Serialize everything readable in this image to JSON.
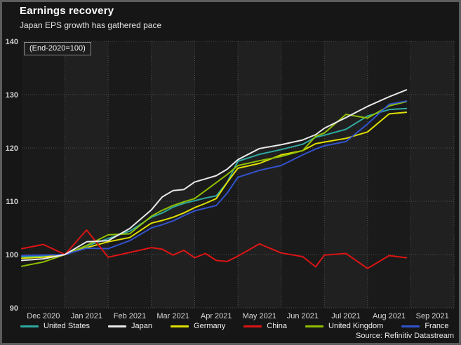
{
  "header": {
    "title": "Earnings recovery",
    "subtitle": "Japan EPS growth has gathered pace"
  },
  "footer": {
    "source": "Source: Refinitiv Datastream"
  },
  "chart_data": {
    "type": "line",
    "title": "Earnings recovery",
    "subtitle": "Japan EPS growth has gathered pace",
    "annotation": "(End-2020=100)",
    "xlabel": "",
    "ylabel": "",
    "ylim": [
      90,
      140
    ],
    "yticks": [
      90,
      100,
      110,
      120,
      130,
      140
    ],
    "x_range_months": [
      0,
      10
    ],
    "x_tick_labels": [
      "Dec 2020",
      "Jan 2021",
      "Feb 2021",
      "Mar 2021",
      "Apr 2021",
      "May 2021",
      "Jun 2021",
      "Jul 2021",
      "Aug 2021",
      "Sep 2021"
    ],
    "grid": "dotted",
    "legend_position": "bottom",
    "plot_band_alt_colors": [
      "#1a1a1a",
      "#202020"
    ],
    "gridline_color": "#4f4f4f",
    "x_months_from_dec1_2020": [
      0,
      0.5,
      1,
      1.5,
      2,
      2.5,
      3,
      3.25,
      3.5,
      3.75,
      4,
      4.25,
      4.5,
      4.75,
      5,
      5.5,
      6,
      6.5,
      6.8,
      7,
      7.5,
      8,
      8.5,
      8.9
    ],
    "x_point_dates": [
      "Dec 1",
      "Dec 15",
      "Jan 1",
      "Jan 15",
      "Feb 1",
      "Feb 15",
      "Mar 1",
      "Mar 8",
      "Mar 15",
      "Mar 23",
      "Apr 1",
      "Apr 8",
      "Apr 15",
      "Apr 23",
      "May 1",
      "May 15",
      "Jun 1",
      "Jun 15",
      "Jun 24",
      "Jul 1",
      "Jul 15",
      "Aug 1",
      "Aug 15",
      "Aug 28"
    ],
    "series": [
      {
        "name": "United States",
        "color": "#2fa8a0",
        "values": [
          99.6,
          99.7,
          100,
          101.6,
          103.0,
          104.4,
          107.0,
          107.8,
          108.9,
          109.6,
          110.1,
          110.6,
          111.0,
          113.5,
          117.5,
          118.8,
          119.7,
          120.7,
          122.0,
          122.4,
          123.5,
          126.0,
          127.2,
          127.4
        ]
      },
      {
        "name": "Japan",
        "color": "#e9e9e9",
        "values": [
          98.9,
          99.2,
          100,
          102.4,
          102.6,
          104.9,
          108.4,
          110.8,
          112.0,
          112.2,
          113.6,
          114.2,
          114.8,
          116.0,
          117.8,
          119.9,
          120.6,
          121.5,
          122.5,
          123.7,
          125.7,
          127.8,
          129.6,
          130.9
        ]
      },
      {
        "name": "Germany",
        "color": "#dfdf00",
        "values": [
          99.3,
          99.5,
          100,
          101.3,
          102.4,
          103.2,
          105.9,
          106.4,
          107.0,
          107.8,
          108.8,
          109.6,
          110.5,
          113.5,
          116.2,
          117.1,
          118.7,
          119.5,
          120.8,
          121.1,
          121.8,
          123.0,
          126.4,
          126.7
        ]
      },
      {
        "name": "China",
        "color": "#dd1414",
        "values": [
          101.1,
          101.9,
          100.0,
          104.6,
          99.5,
          100.4,
          101.3,
          101.0,
          99.9,
          100.8,
          99.4,
          100.2,
          98.9,
          98.7,
          99.7,
          102.0,
          100.3,
          99.6,
          97.7,
          99.9,
          100.2,
          97.4,
          99.8,
          99.4
        ]
      },
      {
        "name": "United Kingdom",
        "color": "#8fbe00",
        "values": [
          97.8,
          98.6,
          100,
          101.7,
          103.7,
          103.9,
          107.2,
          108.3,
          109.2,
          109.9,
          110.5,
          112.0,
          113.5,
          115.0,
          116.7,
          117.6,
          118.4,
          119.5,
          122.2,
          122.8,
          126.3,
          125.6,
          127.9,
          128.7
        ]
      },
      {
        "name": "France",
        "color": "#3253cd",
        "values": [
          99.8,
          99.9,
          100,
          101.2,
          101.1,
          102.6,
          105.0,
          105.6,
          106.3,
          107.3,
          108.2,
          108.7,
          109.2,
          111.5,
          114.5,
          115.8,
          116.7,
          118.7,
          119.8,
          120.4,
          121.2,
          124.5,
          128.2,
          128.8
        ]
      }
    ]
  }
}
